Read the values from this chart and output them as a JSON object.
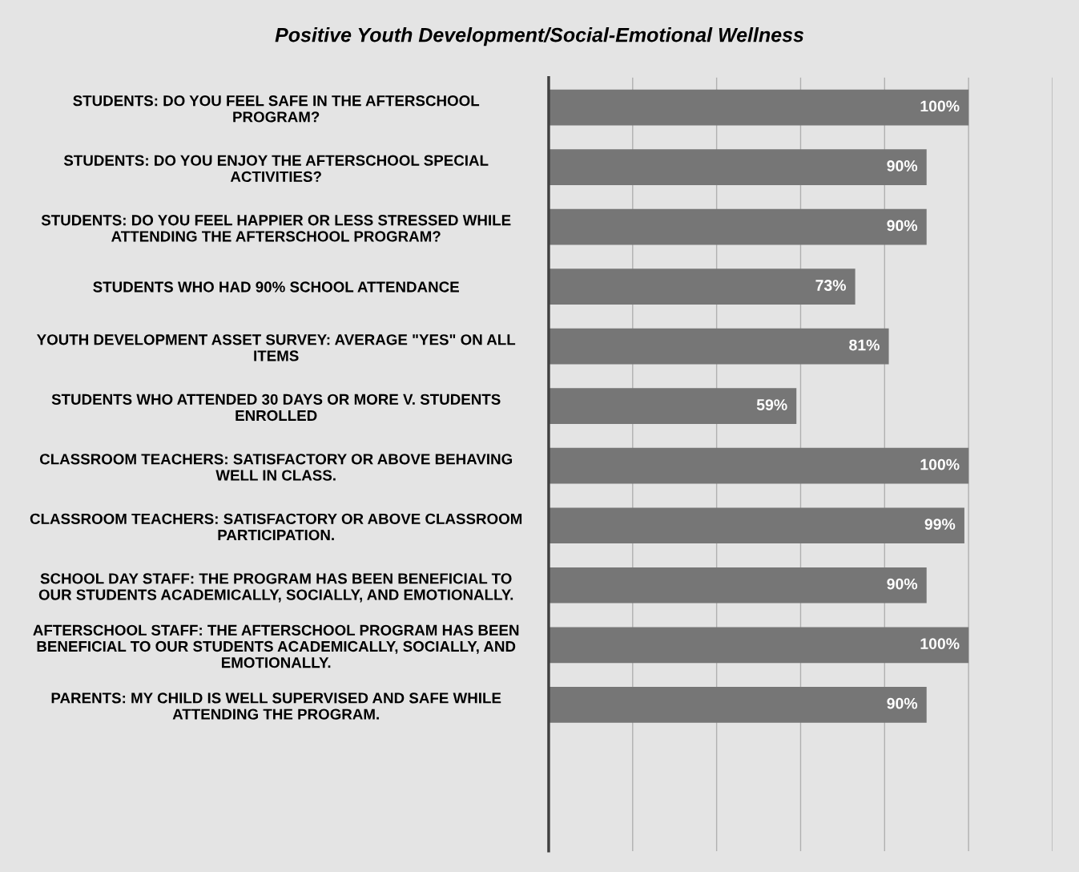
{
  "chart_data": {
    "type": "bar",
    "orientation": "horizontal",
    "title": "Positive Youth Development/Social-Emotional Wellness",
    "categories": [
      "STUDENTS: DO YOU FEEL SAFE IN THE AFTERSCHOOL\nPROGRAM?",
      "STUDENTS: DO YOU ENJOY THE AFTERSCHOOL SPECIAL\nACTIVITIES?",
      "STUDENTS: DO YOU FEEL HAPPIER OR LESS STRESSED WHILE\nATTENDING THE AFTERSCHOOL PROGRAM?",
      "STUDENTS WHO HAD 90% SCHOOL ATTENDANCE",
      "YOUTH DEVELOPMENT ASSET SURVEY: AVERAGE \"YES\" ON ALL\nITEMS",
      "STUDENTS WHO ATTENDED 30 DAYS OR MORE V. STUDENTS\nENROLLED",
      "CLASSROOM TEACHERS: SATISFACTORY OR ABOVE BEHAVING\nWELL IN CLASS.",
      "CLASSROOM TEACHERS: SATISFACTORY OR ABOVE CLASSROOM\nPARTICIPATION.",
      "SCHOOL DAY STAFF: THE PROGRAM HAS BEEN BENEFICIAL TO\nOUR STUDENTS ACADEMICALLY, SOCIALLY, AND EMOTIONALLY.",
      "AFTERSCHOOL STAFF: THE AFTERSCHOOL PROGRAM HAS BEEN\nBENEFICIAL TO OUR STUDENTS ACADEMICALLY, SOCIALLY, AND\nEMOTIONALLY.",
      "PARENTS: MY CHILD IS WELL SUPERVISED AND SAFE WHILE\nATTENDING THE PROGRAM."
    ],
    "values": [
      100,
      90,
      90,
      73,
      81,
      59,
      100,
      99,
      90,
      100,
      90
    ],
    "value_labels": [
      "100%",
      "90%",
      "90%",
      "73%",
      "81%",
      "59%",
      "100%",
      "99%",
      "90%",
      "100%",
      "90%"
    ],
    "color": "#767676",
    "xlim": [
      0,
      120
    ],
    "xticks": [
      {
        "value": 0,
        "label": null
      },
      {
        "value": 20,
        "label": null
      },
      {
        "value": 40,
        "label": null
      },
      {
        "value": 60,
        "label": null
      },
      {
        "value": 80,
        "label": null
      },
      {
        "value": 100,
        "label": null
      },
      {
        "value": 120,
        "label": null
      }
    ],
    "grid": "x",
    "tick_labels": "y"
  }
}
